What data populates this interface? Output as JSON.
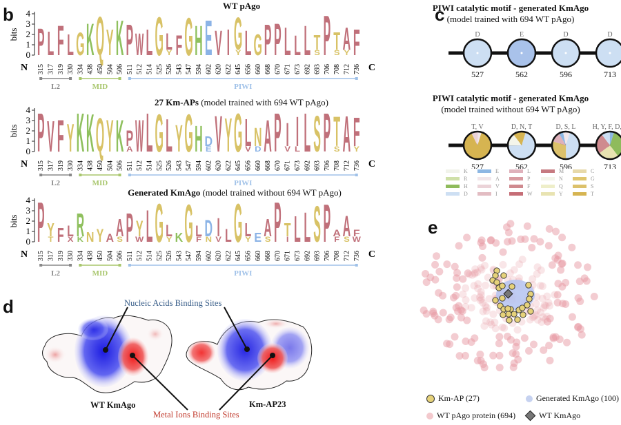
{
  "panels": {
    "b": {
      "letter": "b",
      "y_axis_label": "bits",
      "y_ticks": [
        "0",
        "1",
        "2",
        "3",
        "4"
      ],
      "n_label": "N",
      "c_label": "C",
      "positions": [
        "315",
        "317",
        "319",
        "330",
        "334",
        "438",
        "450",
        "504",
        "506",
        "511",
        "512",
        "514",
        "525",
        "526",
        "543",
        "547",
        "594",
        "602",
        "620",
        "622",
        "645",
        "656",
        "660",
        "668",
        "670",
        "671",
        "673",
        "692",
        "693",
        "706",
        "708",
        "712",
        "736"
      ],
      "domains": [
        {
          "name": "L2",
          "from": "315",
          "to": "330",
          "color": "#888888"
        },
        {
          "name": "MID",
          "from": "334",
          "to": "506",
          "color": "#a8c66c"
        },
        {
          "name": "PIWI",
          "from": "511",
          "to": "736",
          "color": "#9fc1e8"
        }
      ],
      "logos": [
        {
          "title_bold": "WT pAgo",
          "title_rest": "",
          "consensus": [
            "P",
            "L",
            "F",
            "L",
            "G",
            "K",
            "Q",
            "Y",
            "K",
            "P",
            "W",
            "L",
            "G",
            "L",
            "F",
            "G",
            "H",
            "E",
            "V",
            "I",
            "G",
            "L",
            "G",
            "P",
            "P",
            "L",
            "L",
            "L",
            "T",
            "P",
            "T",
            "A",
            "F"
          ],
          "heights": [
            2.7,
            2.4,
            3.0,
            2.1,
            2.3,
            3.2,
            3.9,
            2.6,
            3.5,
            3.1,
            2.2,
            2.6,
            3.9,
            2.2,
            2.0,
            3.8,
            3.0,
            3.5,
            2.5,
            2.6,
            3.8,
            2.5,
            2.1,
            3.1,
            3.2,
            2.8,
            2.0,
            3.0,
            2.0,
            4.0,
            2.3,
            2.8,
            2.6
          ],
          "secondary": [
            "",
            "",
            "",
            "",
            "",
            "",
            "",
            "",
            "",
            "",
            "",
            "",
            "",
            "Y",
            "",
            "",
            "",
            "",
            "",
            "",
            "Y",
            "",
            "",
            "",
            "",
            "",
            "",
            "",
            "S",
            "",
            "S",
            "Y",
            ""
          ]
        },
        {
          "title_bold": "27 Km-APs",
          "title_rest": " (model trained with 694 WT pAgo)",
          "consensus": [
            "P",
            "V",
            "F",
            "Y",
            "K",
            "K",
            "Q",
            "Y",
            "K",
            "P",
            "W",
            "L",
            "G",
            "L",
            "Y",
            "G",
            "H",
            "D",
            "V",
            "Y",
            "G",
            "L",
            "N",
            "A",
            "P",
            "I",
            "I",
            "L",
            "S",
            "P",
            "T",
            "A",
            "F"
          ],
          "heights": [
            3.9,
            3.1,
            3.2,
            2.8,
            3.9,
            3.8,
            3.4,
            3.2,
            3.2,
            2.1,
            3.2,
            3.9,
            3.8,
            3.3,
            2.7,
            3.8,
            2.6,
            1.5,
            3.6,
            3.4,
            3.9,
            3.3,
            2.4,
            3.2,
            3.9,
            2.9,
            3.5,
            3.9,
            3.6,
            3.9,
            3.5,
            3.6,
            3.4
          ],
          "secondary": [
            "",
            "",
            "",
            "",
            "",
            "",
            "",
            "",
            "",
            "A",
            "",
            "",
            "",
            "",
            "",
            "",
            "",
            "E",
            "",
            "",
            "",
            "V",
            "D",
            "",
            "",
            "V",
            "L",
            "",
            "",
            "",
            "S",
            "",
            "Y"
          ]
        },
        {
          "title_bold": "Generated KmAgo",
          "title_rest": " (model trained without 694 WT pAgo)",
          "consensus": [
            "P",
            "Y",
            "F",
            "L",
            "R",
            "N",
            "Y",
            "A",
            "A",
            "P",
            "Y",
            "L",
            "G",
            "L",
            "K",
            "G",
            "L",
            "D",
            "I",
            "L",
            "G",
            "L",
            "E",
            "A",
            "P",
            "T",
            "L",
            "L",
            "S",
            "P",
            "A",
            "A",
            "F"
          ],
          "heights": [
            4.0,
            1.9,
            1.4,
            1.6,
            2.9,
            1.0,
            1.3,
            0.8,
            2.3,
            2.9,
            2.1,
            3.2,
            3.9,
            1.7,
            0.9,
            3.8,
            1.6,
            2.2,
            2.4,
            1.3,
            3.9,
            1.9,
            0.9,
            2.3,
            4.0,
            1.9,
            2.6,
            3.0,
            3.6,
            3.8,
            1.2,
            2.6,
            1.2
          ],
          "secondary": [
            "",
            "T",
            "",
            "X",
            "K",
            "",
            "",
            "",
            "S",
            "",
            "W",
            "",
            "",
            "Y",
            "",
            "",
            "F",
            "N",
            "V",
            "",
            "",
            "Y",
            "",
            "S",
            "",
            "I",
            "",
            "",
            "",
            "",
            "F",
            "S",
            "W"
          ]
        }
      ]
    },
    "c": {
      "letter": "c",
      "motif_positions": [
        "527",
        "562",
        "596",
        "713"
      ],
      "top": {
        "title_bold": "PIWI catalytic motif - generated KmAgo",
        "title_sub": "(model trained with 694 WT pAgo)",
        "residues": [
          "D",
          "E",
          "D",
          "D"
        ]
      },
      "bottom": {
        "title_bold": "PIWI catalytic motif - generated KmAgo",
        "title_sub": "(model trained without 694 WT pAgo)",
        "residues": [
          "T, V",
          "D, N, T",
          "D, S, L",
          "H, Y, F, D, E"
        ],
        "pies": [
          [
            {
              "aa": "T",
              "frac": 0.88
            },
            {
              "aa": "V",
              "frac": 0.08
            },
            {
              "aa": "A",
              "frac": 0.04
            }
          ],
          [
            {
              "aa": "D",
              "frac": 0.7
            },
            {
              "aa": "N",
              "frac": 0.15
            },
            {
              "aa": "T",
              "frac": 0.15
            }
          ],
          [
            {
              "aa": "D",
              "frac": 0.45
            },
            {
              "aa": "S",
              "frac": 0.3
            },
            {
              "aa": "L",
              "frac": 0.12
            },
            {
              "aa": "E",
              "frac": 0.05
            },
            {
              "aa": "A",
              "frac": 0.08
            }
          ],
          [
            {
              "aa": "H",
              "frac": 0.35
            },
            {
              "aa": "Y",
              "frac": 0.25
            },
            {
              "aa": "F",
              "frac": 0.25
            },
            {
              "aa": "D",
              "frac": 0.1
            },
            {
              "aa": "E",
              "frac": 0.05
            }
          ]
        ]
      },
      "legend": [
        {
          "aa": "K",
          "color": "#f1f3ea"
        },
        {
          "aa": "R",
          "color": "#cfe0a8"
        },
        {
          "aa": "H",
          "color": "#8fbb5c"
        },
        {
          "aa": "D",
          "color": "#cddff3"
        },
        {
          "aa": "E",
          "color": "#8db7e3"
        },
        {
          "aa": "A",
          "color": "#f1e6ea"
        },
        {
          "aa": "V",
          "color": "#ebd3d8"
        },
        {
          "aa": "I",
          "color": "#e2bcc2"
        },
        {
          "aa": "L",
          "color": "#dfb1bb"
        },
        {
          "aa": "P",
          "color": "#d89ba1"
        },
        {
          "aa": "F",
          "color": "#cf8a8f"
        },
        {
          "aa": "W",
          "color": "#c56d76"
        },
        {
          "aa": "M",
          "color": "#c67a80"
        },
        {
          "aa": "N",
          "color": "#f4f5ea"
        },
        {
          "aa": "Q",
          "color": "#eeeec9"
        },
        {
          "aa": "Y",
          "color": "#e8e3b1"
        },
        {
          "aa": "C",
          "color": "#e7d9a9"
        },
        {
          "aa": "G",
          "color": "#dfc56d"
        },
        {
          "aa": "S",
          "color": "#dcc16b"
        },
        {
          "aa": "T",
          "color": "#d6b451"
        }
      ]
    },
    "d": {
      "letter": "d",
      "nucleic_label": "Nucleic Acids Binding Sites",
      "metal_label": "Metal Ions Binding Sites",
      "structures": [
        "WT KmAgo",
        "Km-AP23"
      ],
      "nucleic_color": "#3a5f8a",
      "metal_color": "#c0392b"
    },
    "e": {
      "letter": "e",
      "legend": [
        {
          "label": "Km-AP (27)",
          "color": "#e6d27a",
          "shape": "circle"
        },
        {
          "label": "Generated KmAgo (100)",
          "color": "#c6d2f0",
          "shape": "circle"
        },
        {
          "label": "WT pAgo protein (694)",
          "color": "#f3c9cd",
          "shape": "circle"
        },
        {
          "label": "WT KmAgo",
          "color": "#777777",
          "shape": "diamond"
        }
      ]
    }
  },
  "colors": {
    "hydrophobic": "#c0707a",
    "polar": "#d8c266",
    "basic": "#8fc05e",
    "acidic": "#8bb3e6"
  }
}
